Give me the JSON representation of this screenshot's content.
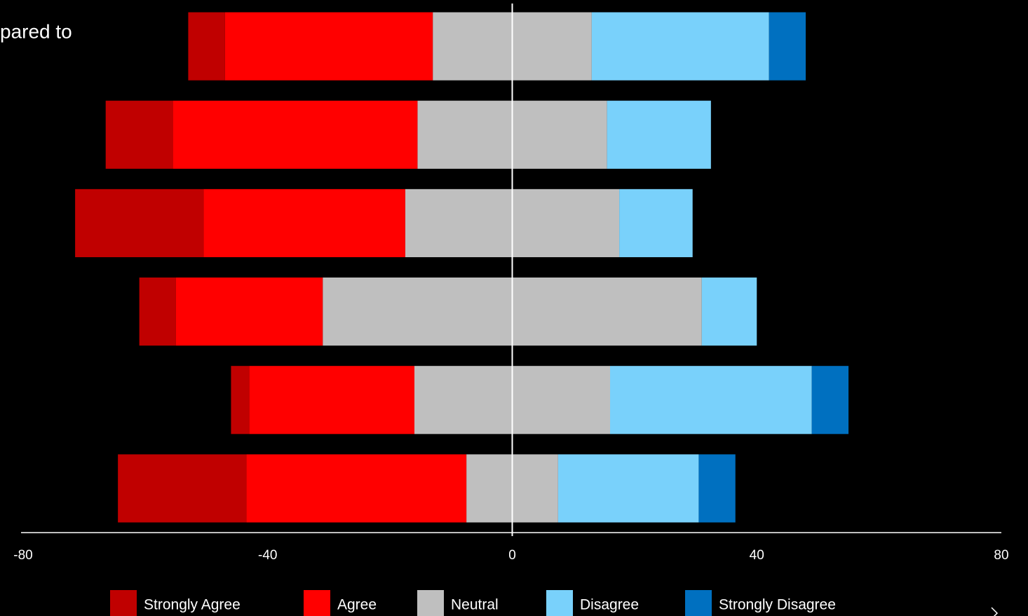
{
  "chart_data": {
    "type": "diverging-bar",
    "title": "pared to",
    "categories": [
      null,
      null,
      null,
      null,
      null,
      null
    ],
    "series": [
      {
        "name": "Strongly Agree",
        "color": "#c00000",
        "values": [
          6,
          11,
          21,
          6,
          3,
          21
        ]
      },
      {
        "name": "Agree",
        "color": "#ff0000",
        "values": [
          34,
          40,
          33,
          24,
          27,
          36
        ]
      },
      {
        "name": "Neutral",
        "color": "#bfbfbf",
        "values": [
          26,
          31,
          35,
          62,
          32,
          15
        ]
      },
      {
        "name": "Disagree",
        "color": "#79d1fb",
        "values": [
          29,
          17,
          12,
          9,
          33,
          23
        ]
      },
      {
        "name": "Strongly Disagree",
        "color": "#0070c0",
        "values": [
          6,
          0,
          0,
          0,
          6,
          6
        ]
      }
    ],
    "xlim": [
      -80,
      80
    ],
    "xticks": [
      -80,
      -40,
      0,
      40,
      80
    ],
    "legend": "bottom"
  }
}
